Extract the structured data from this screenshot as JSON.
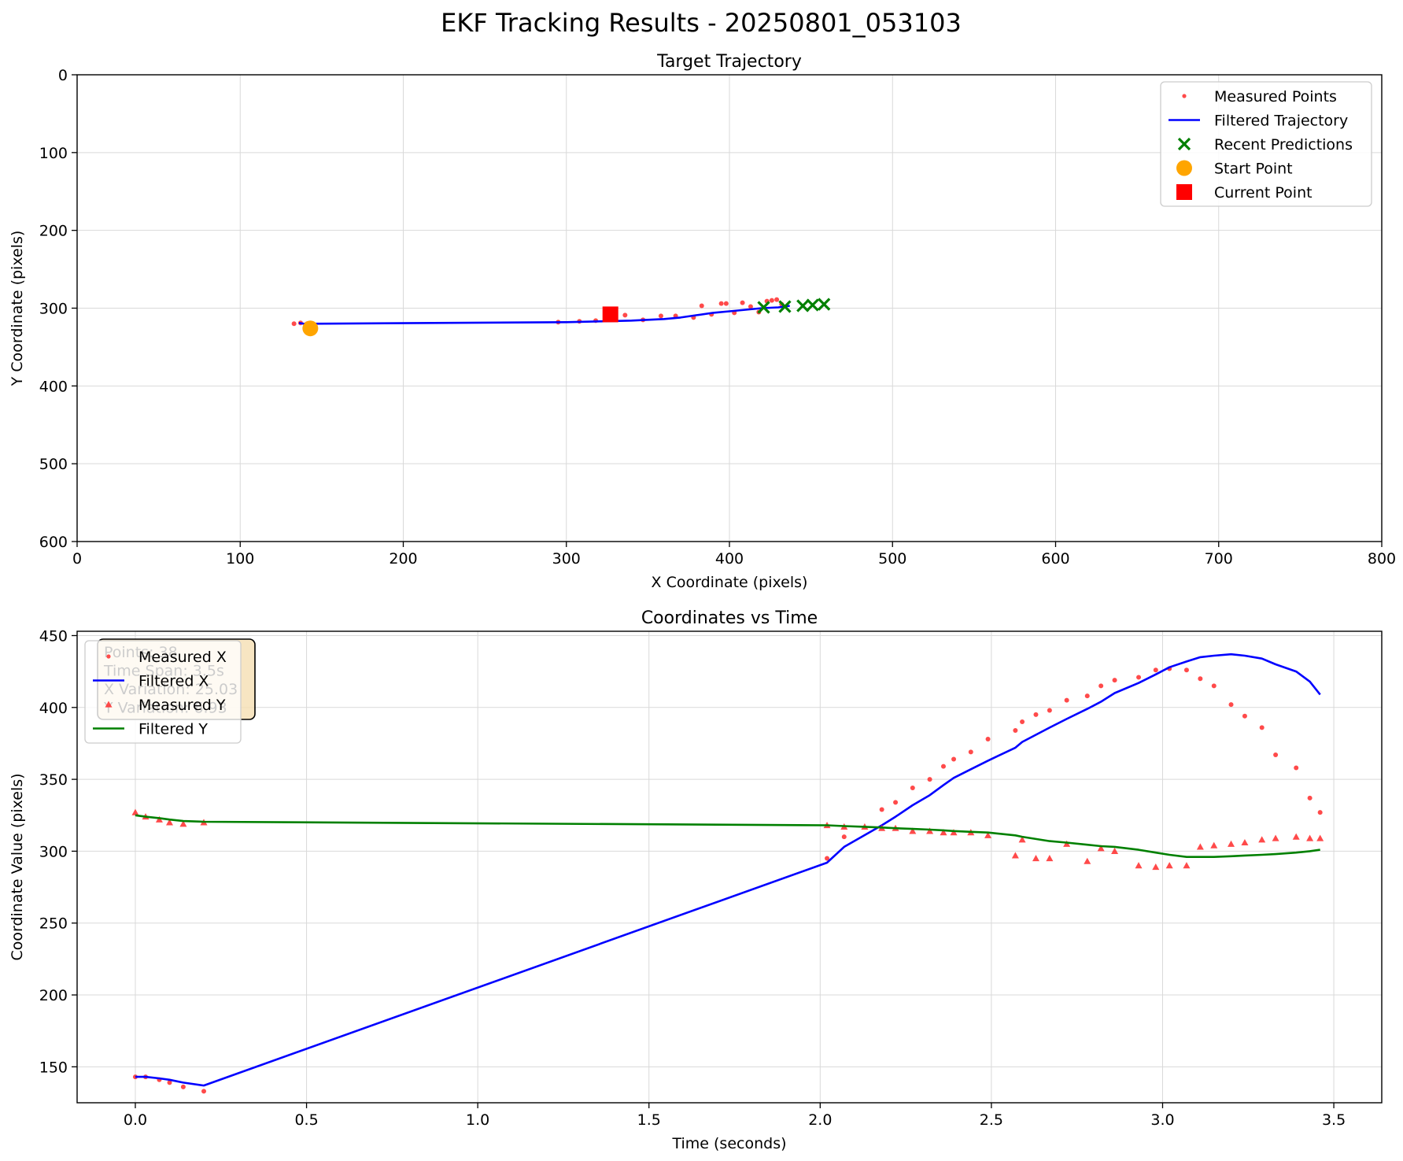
{
  "figure_title": "EKF Tracking Results - 20250801_053103",
  "chart_data": [
    {
      "type": "scatter",
      "title": "Target Trajectory",
      "xlabel": "X Coordinate (pixels)",
      "ylabel": "Y Coordinate (pixels)",
      "xlim": [
        0,
        800
      ],
      "ylim": [
        600,
        0
      ],
      "y_inverted": true,
      "xticks": [
        0,
        100,
        200,
        300,
        400,
        500,
        600,
        700,
        800
      ],
      "yticks": [
        0,
        100,
        200,
        300,
        400,
        500,
        600
      ],
      "grid": true,
      "legend_position": "upper right",
      "series": [
        {
          "name": "Measured Points",
          "kind": "points",
          "color": "#ff2a2a",
          "x": [
            133,
            137,
            141,
            144,
            295,
            308,
            318,
            328,
            336,
            347,
            358,
            367,
            378,
            383,
            389,
            395,
            398,
            403,
            408,
            413,
            418,
            423,
            426,
            429,
            432
          ],
          "y": [
            320,
            319,
            320,
            322,
            318,
            317,
            316,
            313,
            309,
            315,
            310,
            310,
            312,
            297,
            308,
            294,
            294,
            306,
            293,
            298,
            305,
            291,
            290,
            289,
            295
          ]
        },
        {
          "name": "Filtered Trajectory",
          "kind": "line",
          "color": "#0000ff",
          "x": [
            136,
            139,
            142,
            143,
            300,
            320,
            340,
            360,
            370,
            380,
            390,
            400,
            410,
            420,
            430,
            437
          ],
          "y": [
            319,
            320,
            321,
            320,
            318,
            317,
            316,
            314,
            312,
            309,
            306,
            304,
            302,
            300,
            299,
            297
          ]
        },
        {
          "name": "Recent Predictions",
          "kind": "x-markers",
          "color": "#008000",
          "x": [
            421,
            434,
            445,
            451,
            458
          ],
          "y": [
            299,
            298,
            297,
            296,
            295
          ]
        },
        {
          "name": "Start Point",
          "kind": "circle",
          "color": "#ffa500",
          "x": [
            143
          ],
          "y": [
            326
          ]
        },
        {
          "name": "Current Point",
          "kind": "square",
          "color": "#ff0000",
          "x": [
            327
          ],
          "y": [
            308
          ]
        }
      ]
    },
    {
      "type": "line",
      "title": "Coordinates vs Time",
      "xlabel": "Time (seconds)",
      "ylabel": "Coordinate Value (pixels)",
      "xlim": [
        -0.17,
        3.64
      ],
      "ylim": [
        125,
        453
      ],
      "xticks": [
        0.0,
        0.5,
        1.0,
        1.5,
        2.0,
        2.5,
        3.0,
        3.5
      ],
      "xtick_labels": [
        "0.0",
        "0.5",
        "1.0",
        "1.5",
        "2.0",
        "2.5",
        "3.0",
        "3.5"
      ],
      "yticks": [
        150,
        200,
        250,
        300,
        350,
        400,
        450
      ],
      "grid": true,
      "legend_position": "upper left",
      "stats_box": {
        "lines": [
          "Points: 38",
          "Time Span: 3.5s",
          "X Variation: 25.03",
          "Y Variation: 6.93"
        ],
        "facecolor": "#f5deb3"
      },
      "series": [
        {
          "name": "Measured X",
          "kind": "points",
          "color": "#ff2a2a",
          "x": [
            0.0,
            0.03,
            0.07,
            0.1,
            0.14,
            0.2,
            2.02,
            2.07,
            2.18,
            2.22,
            2.27,
            2.32,
            2.36,
            2.39,
            2.44,
            2.49,
            2.57,
            2.59,
            2.63,
            2.67,
            2.72,
            2.78,
            2.82,
            2.86,
            2.93,
            2.98,
            3.02,
            3.07,
            3.11,
            3.15,
            3.2,
            3.24,
            3.29,
            3.33,
            3.39,
            3.43,
            3.46
          ],
          "y": [
            143,
            143,
            141,
            139,
            136,
            133,
            295,
            310,
            329,
            334,
            344,
            350,
            359,
            364,
            369,
            378,
            384,
            390,
            395,
            398,
            405,
            408,
            415,
            419,
            421,
            426,
            427,
            426,
            420,
            415,
            402,
            394,
            386,
            367,
            358,
            337,
            327
          ]
        },
        {
          "name": "Filtered X",
          "kind": "line",
          "color": "#0000ff",
          "x": [
            0.0,
            0.03,
            0.07,
            0.1,
            0.14,
            0.2,
            2.02,
            2.07,
            2.18,
            2.22,
            2.27,
            2.32,
            2.36,
            2.39,
            2.44,
            2.49,
            2.57,
            2.59,
            2.63,
            2.67,
            2.72,
            2.78,
            2.82,
            2.86,
            2.93,
            2.98,
            3.02,
            3.07,
            3.11,
            3.15,
            3.2,
            3.24,
            3.29,
            3.33,
            3.39,
            3.43,
            3.46
          ],
          "y": [
            143,
            143,
            142,
            141,
            139,
            137,
            292,
            303,
            318,
            324,
            332,
            339,
            346,
            351,
            357,
            363,
            372,
            376,
            381,
            386,
            392,
            399,
            404,
            410,
            417,
            423,
            428,
            432,
            435,
            436,
            437,
            436,
            434,
            430,
            425,
            418,
            409
          ]
        },
        {
          "name": "Measured Y",
          "kind": "triangles",
          "color": "#ff2a2a",
          "x": [
            0.0,
            0.03,
            0.07,
            0.1,
            0.14,
            0.2,
            2.02,
            2.07,
            2.13,
            2.18,
            2.22,
            2.27,
            2.32,
            2.36,
            2.39,
            2.44,
            2.49,
            2.57,
            2.59,
            2.63,
            2.67,
            2.72,
            2.78,
            2.82,
            2.86,
            2.93,
            2.98,
            3.02,
            3.07,
            3.11,
            3.15,
            3.2,
            3.24,
            3.29,
            3.33,
            3.39,
            3.43,
            3.46
          ],
          "y": [
            327,
            324,
            322,
            320,
            319,
            320,
            318,
            317,
            317,
            316,
            316,
            314,
            314,
            313,
            313,
            313,
            311,
            297,
            308,
            295,
            295,
            305,
            293,
            302,
            300,
            290,
            289,
            290,
            290,
            303,
            304,
            305,
            306,
            308,
            309,
            310,
            309,
            309
          ]
        },
        {
          "name": "Filtered Y",
          "kind": "line",
          "color": "#008000",
          "x": [
            0.0,
            0.03,
            0.07,
            0.1,
            0.14,
            0.2,
            2.02,
            2.07,
            2.13,
            2.18,
            2.22,
            2.27,
            2.32,
            2.36,
            2.39,
            2.44,
            2.49,
            2.57,
            2.59,
            2.63,
            2.67,
            2.72,
            2.78,
            2.82,
            2.86,
            2.93,
            2.98,
            3.02,
            3.07,
            3.11,
            3.15,
            3.2,
            3.24,
            3.29,
            3.33,
            3.39,
            3.43,
            3.46
          ],
          "y": [
            325,
            324,
            323,
            322,
            321,
            320.5,
            318,
            317.5,
            317,
            316.5,
            316,
            315.5,
            315,
            314.5,
            314,
            313.5,
            313,
            311,
            310,
            308.5,
            307,
            306,
            304.5,
            303.5,
            303,
            301,
            299,
            297.5,
            296,
            296,
            296,
            296.5,
            297,
            297.5,
            298,
            299,
            300,
            301
          ]
        }
      ]
    }
  ]
}
